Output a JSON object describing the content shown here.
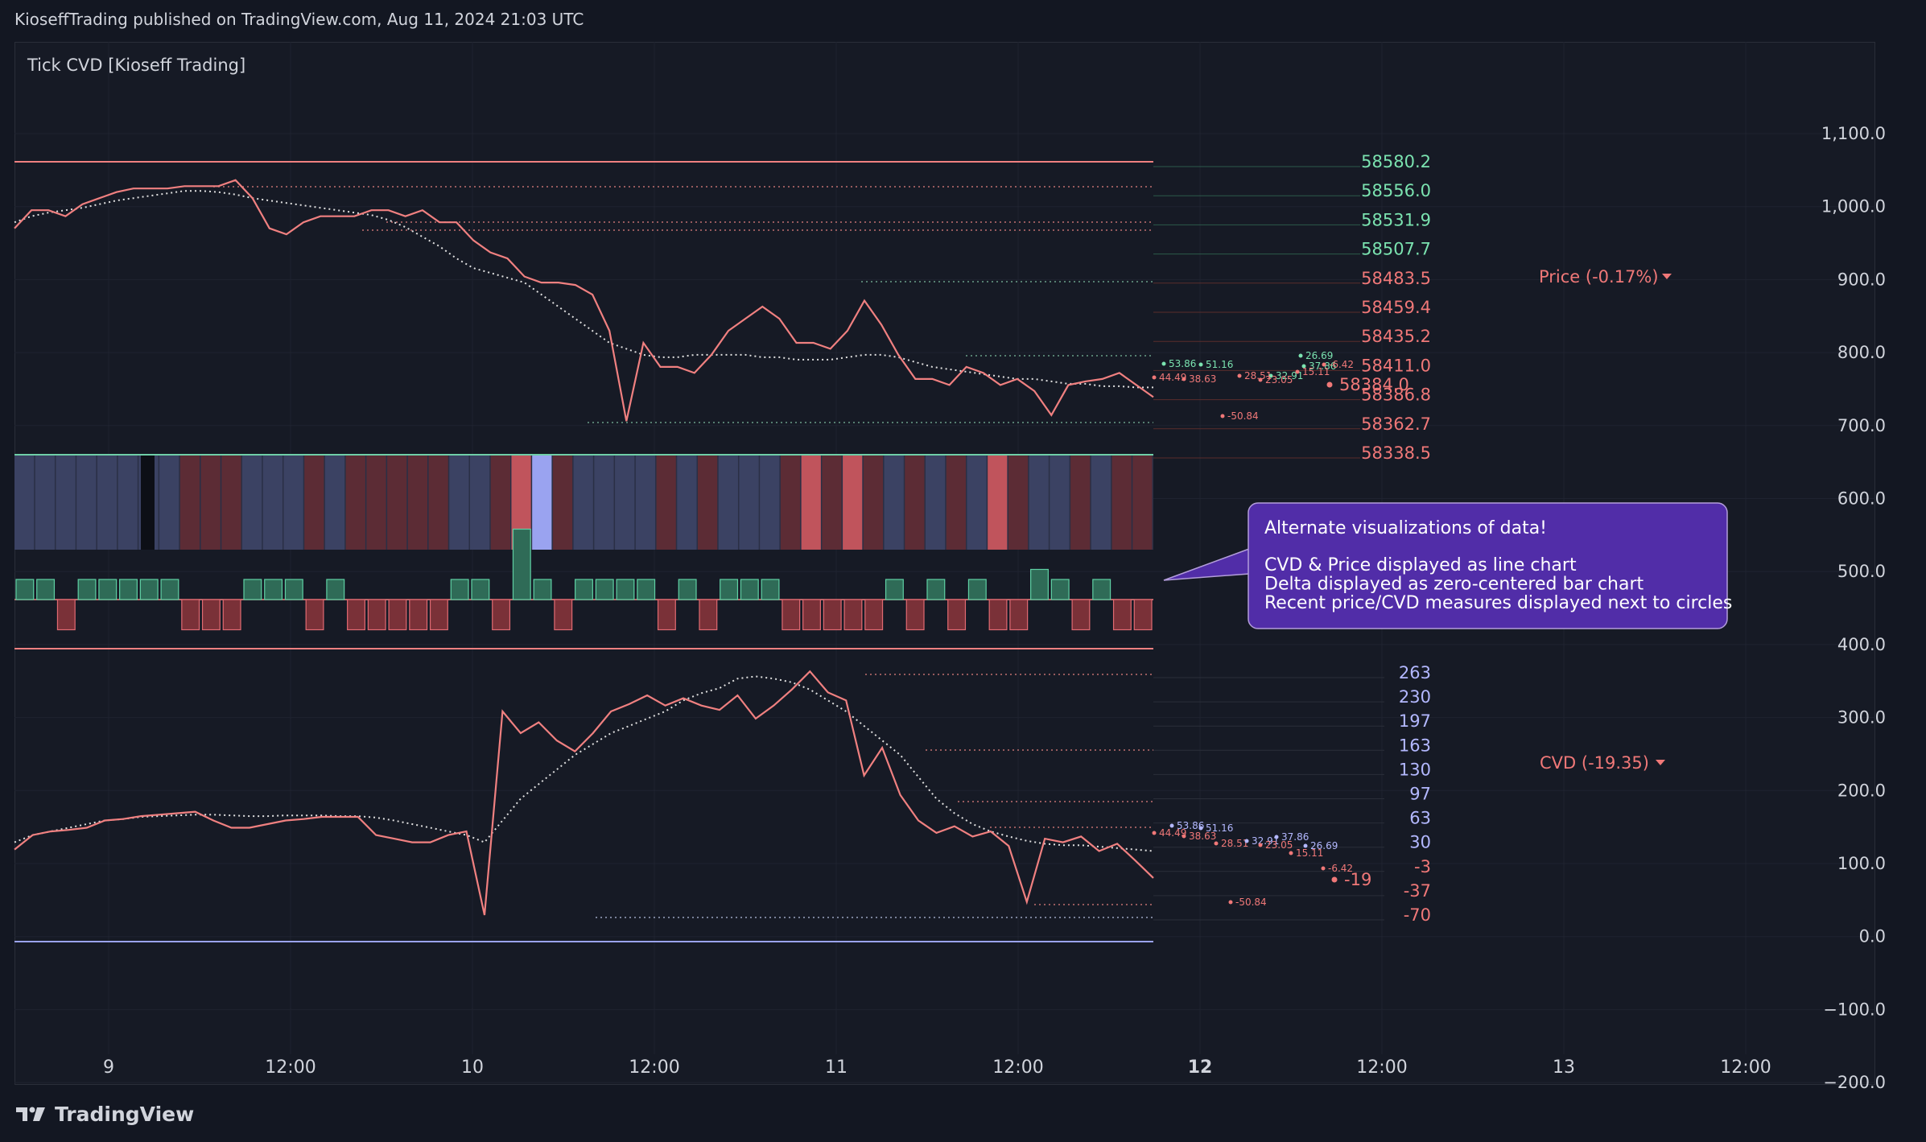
{
  "header": {
    "published": "KioseffTrading published on TradingView.com, Aug 11, 2024 21:03 UTC"
  },
  "indicator": {
    "title": "Tick CVD [Kioseff Trading]"
  },
  "footer": {
    "brand": "TradingView",
    "logo_icon": "tradingview-logo-icon"
  },
  "callout": {
    "title": "Alternate visualizations of data!",
    "lines": [
      "CVD & Price displayed as line chart",
      "Delta displayed as zero-centered bar chart",
      "Recent price/CVD measures displayed next to circles"
    ]
  },
  "colors": {
    "background": "#131722",
    "pane": "#161a25",
    "up": "#4fa486",
    "down": "#c45454",
    "line": "#f08080",
    "green_label": "#7be3b0",
    "red_label": "#f07878",
    "blue_label": "#b3b8ff",
    "callout": "#512da8"
  },
  "chart_data": {
    "type": "line",
    "right_axis": {
      "ticks": [
        "1,100.0",
        "1,000.0",
        "900.0",
        "800.0",
        "700.0",
        "600.0",
        "500.0",
        "400.0",
        "300.0",
        "200.0",
        "100.0",
        "0.0",
        "−100.0",
        "−200.0"
      ],
      "values": [
        1100,
        1000,
        900,
        800,
        700,
        600,
        500,
        400,
        300,
        200,
        100,
        0,
        -100,
        -200
      ]
    },
    "x_ticks": [
      {
        "label": "9",
        "bold": false
      },
      {
        "label": "12:00",
        "bold": false
      },
      {
        "label": "10",
        "bold": false
      },
      {
        "label": "12:00",
        "bold": false
      },
      {
        "label": "11",
        "bold": false
      },
      {
        "label": "12:00",
        "bold": false
      },
      {
        "label": "12",
        "bold": true
      },
      {
        "label": "12:00",
        "bold": false
      },
      {
        "label": "13",
        "bold": false
      },
      {
        "label": "12:00",
        "bold": false
      }
    ],
    "price_legend": "Price (-0.17%)",
    "cvd_legend": "CVD (-19.35)",
    "price_levels": [
      {
        "label": "58580.2",
        "color": "#7be3b0"
      },
      {
        "label": "58556.0",
        "color": "#7be3b0"
      },
      {
        "label": "58531.9",
        "color": "#7be3b0"
      },
      {
        "label": "58507.7",
        "color": "#7be3b0"
      },
      {
        "label": "58483.5",
        "color": "#f07878"
      },
      {
        "label": "58459.4",
        "color": "#f07878"
      },
      {
        "label": "58435.2",
        "color": "#f07878"
      },
      {
        "label": "58411.0",
        "color": "#f07878"
      },
      {
        "label": "58386.8",
        "color": "#f07878"
      },
      {
        "label": "58362.7",
        "color": "#f07878"
      },
      {
        "label": "58338.5",
        "color": "#f07878"
      }
    ],
    "price_last": "58384.0",
    "cvd_levels": [
      {
        "label": "263",
        "color": "#b3b8ff"
      },
      {
        "label": "230",
        "color": "#b3b8ff"
      },
      {
        "label": "197",
        "color": "#b3b8ff"
      },
      {
        "label": "163",
        "color": "#b3b8ff"
      },
      {
        "label": "130",
        "color": "#b3b8ff"
      },
      {
        "label": "97",
        "color": "#b3b8ff"
      },
      {
        "label": "63",
        "color": "#b3b8ff"
      },
      {
        "label": "30",
        "color": "#b3b8ff"
      },
      {
        "label": "-3",
        "color": "#f07878"
      },
      {
        "label": "-37",
        "color": "#f07878"
      },
      {
        "label": "-70",
        "color": "#f07878"
      }
    ],
    "cvd_last": "-19",
    "price_circle_labels": [
      "53.86",
      "51.16",
      "44.49",
      "38.63",
      "28.51",
      "32.91",
      "37.86",
      "26.69",
      "23.05",
      "15.11",
      "-6.42",
      "-50.84"
    ],
    "cvd_circle_labels": [
      "53.86",
      "51.16",
      "44.49",
      "38.63",
      "28.51",
      "32.91",
      "37.86",
      "26.69",
      "23.05",
      "15.11",
      "-6.42",
      "-50.84"
    ],
    "price_series": [
      58525,
      58540,
      58540,
      58535,
      58545,
      58550,
      58555,
      58558,
      58558,
      58558,
      58560,
      58560,
      58560,
      58565,
      58550,
      58525,
      58520,
      58530,
      58535,
      58535,
      58535,
      58540,
      58540,
      58535,
      58540,
      58530,
      58530,
      58515,
      58505,
      58500,
      58485,
      58480,
      58480,
      58478,
      58470,
      58440,
      58365,
      58430,
      58410,
      58410,
      58405,
      58420,
      58440,
      58450,
      58460,
      58450,
      58430,
      58430,
      58425,
      58440,
      58465,
      58445,
      58420,
      58400,
      58400,
      58395,
      58410,
      58405,
      58395,
      58400,
      58390,
      58370,
      58395,
      58398,
      58400,
      58405,
      58395,
      58385
    ],
    "price_ma": [
      58530,
      58535,
      58538,
      58540,
      58542,
      58545,
      58548,
      58550,
      58552,
      58554,
      58556,
      58556,
      58555,
      58553,
      58550,
      58548,
      58546,
      58544,
      58542,
      58540,
      58538,
      58536,
      58532,
      58526,
      58518,
      58510,
      58500,
      58492,
      58488,
      58484,
      58480,
      58470,
      58460,
      58450,
      58440,
      58430,
      58425,
      58420,
      58418,
      58418,
      58420,
      58420,
      58420,
      58420,
      58418,
      58418,
      58416,
      58416,
      58416,
      58418,
      58420,
      58420,
      58418,
      58414,
      58410,
      58408,
      58406,
      58404,
      58402,
      58400,
      58400,
      58398,
      58396,
      58396,
      58394,
      58394,
      58393,
      58393
    ],
    "cvd_series": [
      20,
      40,
      45,
      47,
      50,
      60,
      62,
      66,
      68,
      70,
      72,
      60,
      50,
      50,
      55,
      60,
      62,
      65,
      65,
      65,
      40,
      35,
      30,
      30,
      40,
      45,
      -70,
      210,
      180,
      195,
      170,
      155,
      180,
      210,
      220,
      232,
      218,
      228,
      218,
      212,
      232,
      200,
      218,
      240,
      265,
      236,
      225,
      122,
      160,
      95,
      60,
      43,
      52,
      38,
      45,
      25,
      -52,
      35,
      30,
      38,
      18,
      28,
      5,
      -19
    ],
    "cvd_ma": [
      30,
      40,
      45,
      50,
      55,
      60,
      62,
      65,
      66,
      67,
      68,
      68,
      67,
      66,
      66,
      67,
      67,
      67,
      66,
      66,
      64,
      60,
      55,
      50,
      45,
      40,
      30,
      60,
      90,
      110,
      130,
      150,
      165,
      180,
      190,
      200,
      210,
      225,
      235,
      242,
      255,
      258,
      255,
      250,
      240,
      225,
      210,
      190,
      170,
      150,
      120,
      90,
      70,
      55,
      45,
      38,
      32,
      28,
      26,
      26,
      24,
      22,
      20,
      18
    ],
    "delta_bars": [
      20,
      20,
      -30,
      20,
      20,
      20,
      20,
      20,
      -30,
      -30,
      -30,
      20,
      20,
      20,
      -30,
      20,
      -30,
      -30,
      -30,
      -30,
      -30,
      20,
      20,
      -30,
      70,
      20,
      -30,
      20,
      20,
      20,
      20,
      -30,
      20,
      -30,
      20,
      20,
      20,
      -30,
      -30,
      -30,
      -30,
      -30,
      20,
      -30,
      20,
      -30,
      20,
      -30,
      -30,
      30,
      20,
      -30,
      20,
      -30,
      -30
    ],
    "heat_cells": [
      "b",
      "b",
      "b",
      "b",
      "b",
      "b",
      "b",
      "b",
      "r",
      "r",
      "r",
      "b",
      "b",
      "b",
      "r",
      "b",
      "r",
      "r",
      "r",
      "r",
      "r",
      "b",
      "b",
      "r",
      "R",
      "L",
      "r",
      "b",
      "b",
      "b",
      "b",
      "r",
      "b",
      "r",
      "b",
      "b",
      "b",
      "r",
      "R",
      "r",
      "R",
      "r",
      "b",
      "r",
      "b",
      "r",
      "b",
      "R",
      "r",
      "b",
      "b",
      "r",
      "b",
      "r",
      "r"
    ]
  }
}
